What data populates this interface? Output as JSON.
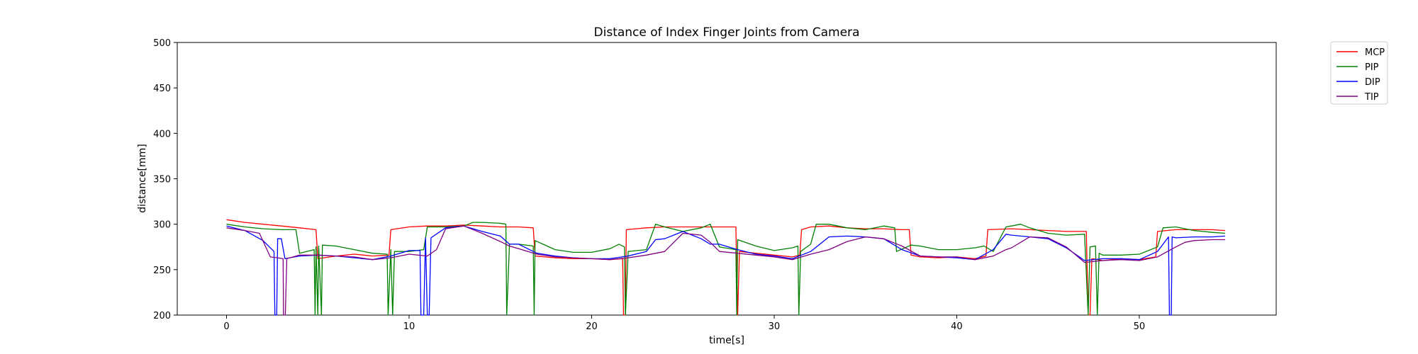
{
  "chart_data": {
    "type": "line",
    "title": "Distance of Index Finger Joints from Camera",
    "xlabel": "time[s]",
    "ylabel": "distance[mm]",
    "xlim": [
      -2.7,
      57.5
    ],
    "ylim": [
      200,
      500
    ],
    "xticks": [
      0,
      10,
      20,
      30,
      40,
      50
    ],
    "yticks": [
      200,
      250,
      300,
      350,
      400,
      450,
      500
    ],
    "grid": false,
    "legend_position": "outside-top-right",
    "series": [
      {
        "name": "MCP",
        "color": "#ff0000",
        "points": [
          [
            0,
            305
          ],
          [
            1,
            302
          ],
          [
            2,
            300
          ],
          [
            3,
            298
          ],
          [
            4,
            296
          ],
          [
            4.9,
            294
          ],
          [
            5.0,
            262
          ],
          [
            6,
            265
          ],
          [
            7,
            267
          ],
          [
            8,
            265
          ],
          [
            8.9,
            266
          ],
          [
            9.0,
            294
          ],
          [
            10,
            297
          ],
          [
            11,
            298
          ],
          [
            12,
            298
          ],
          [
            13,
            299
          ],
          [
            14,
            298
          ],
          [
            15,
            297
          ],
          [
            16,
            297
          ],
          [
            16.8,
            296
          ],
          [
            16.9,
            265
          ],
          [
            18,
            263
          ],
          [
            19,
            262
          ],
          [
            20,
            262
          ],
          [
            21,
            261
          ],
          [
            21.7,
            262
          ],
          [
            21.75,
            200
          ],
          [
            21.85,
            200
          ],
          [
            21.9,
            294
          ],
          [
            23,
            296
          ],
          [
            24,
            297
          ],
          [
            25,
            297
          ],
          [
            26,
            297
          ],
          [
            27,
            297
          ],
          [
            27.9,
            297
          ],
          [
            28.0,
            200
          ],
          [
            28.1,
            270
          ],
          [
            29,
            268
          ],
          [
            30,
            266
          ],
          [
            31,
            264
          ],
          [
            31.4,
            266
          ],
          [
            31.5,
            294
          ],
          [
            32,
            297
          ],
          [
            33,
            298
          ],
          [
            34,
            296
          ],
          [
            35,
            295
          ],
          [
            36,
            295
          ],
          [
            37,
            294
          ],
          [
            37.4,
            294
          ],
          [
            37.5,
            266
          ],
          [
            38,
            264
          ],
          [
            39,
            263
          ],
          [
            40,
            264
          ],
          [
            41,
            262
          ],
          [
            41.6,
            265
          ],
          [
            41.7,
            294
          ],
          [
            43,
            295
          ],
          [
            44,
            294
          ],
          [
            45,
            293
          ],
          [
            46,
            292
          ],
          [
            47.1,
            292
          ],
          [
            47.2,
            200
          ],
          [
            47.3,
            200
          ],
          [
            47.4,
            262
          ],
          [
            48,
            260
          ],
          [
            49,
            262
          ],
          [
            50,
            261
          ],
          [
            50.9,
            264
          ],
          [
            51.0,
            292
          ],
          [
            52,
            294
          ],
          [
            53,
            294
          ],
          [
            54,
            294
          ],
          [
            54.7,
            293
          ]
        ]
      },
      {
        "name": "PIP",
        "color": "#008000",
        "points": [
          [
            0,
            300
          ],
          [
            1,
            297
          ],
          [
            2,
            295
          ],
          [
            3,
            294
          ],
          [
            3.8,
            294
          ],
          [
            4.0,
            268
          ],
          [
            4.8,
            272
          ],
          [
            4.85,
            200
          ],
          [
            4.9,
            275
          ],
          [
            5.0,
            200
          ],
          [
            5.05,
            276
          ],
          [
            5.2,
            200
          ],
          [
            5.25,
            277
          ],
          [
            6,
            276
          ],
          [
            7,
            272
          ],
          [
            8,
            268
          ],
          [
            8.8,
            267
          ],
          [
            8.85,
            200
          ],
          [
            9.0,
            272
          ],
          [
            9.1,
            200
          ],
          [
            9.2,
            270
          ],
          [
            10,
            270
          ],
          [
            10.8,
            272
          ],
          [
            11,
            297
          ],
          [
            12,
            297
          ],
          [
            13,
            298
          ],
          [
            13.5,
            302
          ],
          [
            14,
            302
          ],
          [
            15,
            301
          ],
          [
            15.3,
            300
          ],
          [
            15.35,
            200
          ],
          [
            15.5,
            278
          ],
          [
            16,
            278
          ],
          [
            16.8,
            276
          ],
          [
            16.85,
            200
          ],
          [
            16.9,
            282
          ],
          [
            18,
            272
          ],
          [
            19,
            269
          ],
          [
            20,
            269
          ],
          [
            21,
            273
          ],
          [
            21.5,
            278
          ],
          [
            21.8,
            275
          ],
          [
            21.85,
            200
          ],
          [
            22.0,
            270
          ],
          [
            23,
            272
          ],
          [
            23.5,
            300
          ],
          [
            24,
            297
          ],
          [
            25,
            292
          ],
          [
            26,
            296
          ],
          [
            26.5,
            300
          ],
          [
            27,
            275
          ],
          [
            27.9,
            272
          ],
          [
            27.95,
            200
          ],
          [
            28.0,
            283
          ],
          [
            29,
            276
          ],
          [
            30,
            271
          ],
          [
            31,
            274
          ],
          [
            31.3,
            276
          ],
          [
            31.35,
            200
          ],
          [
            31.45,
            270
          ],
          [
            32,
            278
          ],
          [
            32.3,
            300
          ],
          [
            33,
            300
          ],
          [
            34,
            296
          ],
          [
            35,
            294
          ],
          [
            36,
            298
          ],
          [
            36.6,
            296
          ],
          [
            36.7,
            270
          ],
          [
            37.5,
            277
          ],
          [
            38,
            276
          ],
          [
            39,
            272
          ],
          [
            40,
            272
          ],
          [
            41,
            274
          ],
          [
            41.5,
            276
          ],
          [
            42,
            270
          ],
          [
            42.7,
            297
          ],
          [
            43,
            298
          ],
          [
            43.5,
            300
          ],
          [
            44,
            296
          ],
          [
            45,
            290
          ],
          [
            46,
            288
          ],
          [
            47,
            289
          ],
          [
            47.2,
            200
          ],
          [
            47.3,
            275
          ],
          [
            47.6,
            276
          ],
          [
            47.7,
            200
          ],
          [
            47.8,
            268
          ],
          [
            48,
            266
          ],
          [
            49,
            266
          ],
          [
            50,
            267
          ],
          [
            51,
            275
          ],
          [
            51.3,
            296
          ],
          [
            52,
            297
          ],
          [
            53,
            293
          ],
          [
            54,
            291
          ],
          [
            54.7,
            290
          ]
        ]
      },
      {
        "name": "DIP",
        "color": "#0000ff",
        "points": [
          [
            0,
            298
          ],
          [
            1,
            293
          ],
          [
            2,
            282
          ],
          [
            2.6,
            270
          ],
          [
            2.65,
            200
          ],
          [
            2.75,
            200
          ],
          [
            2.8,
            284
          ],
          [
            3.0,
            284
          ],
          [
            3.2,
            262
          ],
          [
            4,
            265
          ],
          [
            5,
            266
          ],
          [
            6,
            265
          ],
          [
            7,
            263
          ],
          [
            8,
            261
          ],
          [
            9,
            265
          ],
          [
            10,
            271
          ],
          [
            10.6,
            271
          ],
          [
            10.65,
            200
          ],
          [
            10.8,
            200
          ],
          [
            10.9,
            285
          ],
          [
            11.0,
            200
          ],
          [
            11.1,
            200
          ],
          [
            11.2,
            285
          ],
          [
            12,
            296
          ],
          [
            13,
            298
          ],
          [
            14,
            292
          ],
          [
            15,
            287
          ],
          [
            15.5,
            278
          ],
          [
            16,
            278
          ],
          [
            17,
            268
          ],
          [
            18,
            265
          ],
          [
            19,
            263
          ],
          [
            20,
            262
          ],
          [
            21,
            262
          ],
          [
            22,
            265
          ],
          [
            23,
            270
          ],
          [
            23.5,
            283
          ],
          [
            24,
            284
          ],
          [
            25,
            292
          ],
          [
            26,
            284
          ],
          [
            26.5,
            278
          ],
          [
            27,
            278
          ],
          [
            28,
            272
          ],
          [
            29,
            267
          ],
          [
            30,
            265
          ],
          [
            31,
            262
          ],
          [
            32,
            270
          ],
          [
            33,
            286
          ],
          [
            34,
            287
          ],
          [
            35,
            286
          ],
          [
            36,
            284
          ],
          [
            37,
            272
          ],
          [
            38,
            265
          ],
          [
            39,
            264
          ],
          [
            40,
            263
          ],
          [
            41,
            261
          ],
          [
            42,
            272
          ],
          [
            42.7,
            289
          ],
          [
            43,
            288
          ],
          [
            44,
            286
          ],
          [
            45,
            284
          ],
          [
            46,
            274
          ],
          [
            47,
            260
          ],
          [
            48,
            262
          ],
          [
            49,
            262
          ],
          [
            50,
            261
          ],
          [
            51,
            270
          ],
          [
            51.6,
            286
          ],
          [
            51.65,
            200
          ],
          [
            51.75,
            200
          ],
          [
            51.8,
            286
          ],
          [
            52,
            285
          ],
          [
            53,
            286
          ],
          [
            54,
            286
          ],
          [
            54.7,
            287
          ]
        ]
      },
      {
        "name": "TIP",
        "color": "#800080",
        "points": [
          [
            0,
            296
          ],
          [
            1,
            293
          ],
          [
            1.8,
            290
          ],
          [
            2.4,
            264
          ],
          [
            2.8,
            263
          ],
          [
            3.1,
            262
          ],
          [
            3.12,
            200
          ],
          [
            3.22,
            200
          ],
          [
            3.3,
            262
          ],
          [
            4,
            266
          ],
          [
            5,
            266
          ],
          [
            6,
            265
          ],
          [
            7,
            264
          ],
          [
            8,
            261
          ],
          [
            9,
            263
          ],
          [
            10,
            267
          ],
          [
            11,
            265
          ],
          [
            11.5,
            272
          ],
          [
            12,
            295
          ],
          [
            13,
            298
          ],
          [
            14,
            290
          ],
          [
            15,
            281
          ],
          [
            15.5,
            276
          ],
          [
            16,
            273
          ],
          [
            17,
            267
          ],
          [
            18,
            264
          ],
          [
            19,
            263
          ],
          [
            20,
            262
          ],
          [
            21,
            261
          ],
          [
            22,
            263
          ],
          [
            23,
            266
          ],
          [
            24,
            270
          ],
          [
            25,
            290
          ],
          [
            26,
            288
          ],
          [
            26.5,
            280
          ],
          [
            27,
            270
          ],
          [
            28,
            268
          ],
          [
            29,
            266
          ],
          [
            30,
            264
          ],
          [
            31,
            261
          ],
          [
            32,
            267
          ],
          [
            33,
            272
          ],
          [
            34,
            281
          ],
          [
            35,
            286
          ],
          [
            36,
            284
          ],
          [
            37,
            276
          ],
          [
            38,
            265
          ],
          [
            39,
            264
          ],
          [
            40,
            264
          ],
          [
            41,
            261
          ],
          [
            42,
            265
          ],
          [
            42.7,
            272
          ],
          [
            43,
            274
          ],
          [
            44,
            286
          ],
          [
            45,
            285
          ],
          [
            46,
            275
          ],
          [
            47,
            258
          ],
          [
            48,
            260
          ],
          [
            49,
            261
          ],
          [
            50,
            260
          ],
          [
            51,
            264
          ],
          [
            52,
            275
          ],
          [
            52.5,
            280
          ],
          [
            53,
            282
          ],
          [
            54,
            283
          ],
          [
            54.7,
            283
          ]
        ]
      }
    ]
  }
}
